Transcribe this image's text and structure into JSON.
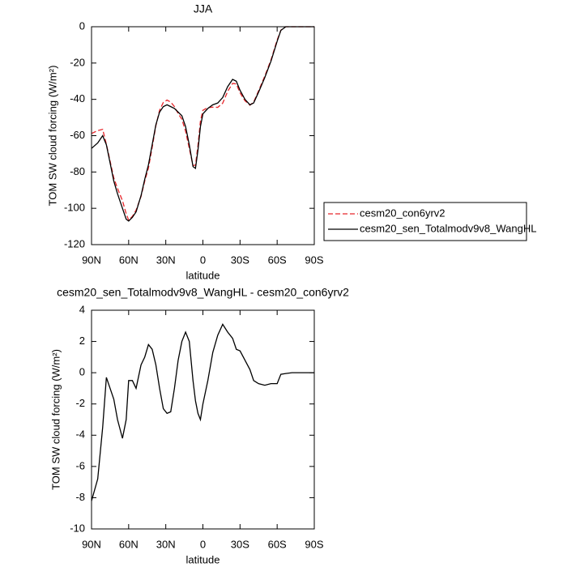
{
  "chart_data": [
    {
      "type": "line",
      "title": "JJA",
      "xlabel": "latitude",
      "ylabel": "TOM SW cloud forcing (W/m²)",
      "x": [
        90,
        85,
        81,
        78,
        75,
        72,
        69,
        65,
        62,
        60,
        57,
        54,
        50,
        47,
        44,
        41,
        38,
        35,
        32,
        29,
        26,
        23,
        20,
        17,
        14,
        11,
        8,
        6,
        4,
        2,
        0,
        -4,
        -8,
        -12,
        -16,
        -20,
        -24,
        -27,
        -30,
        -34,
        -38,
        -41,
        -45,
        -50,
        -55,
        -60,
        -63,
        -67,
        -72,
        -80,
        -90
      ],
      "series": [
        {
          "name": "cesm20_con6yrv2",
          "color": "#e8262b",
          "dashed": true,
          "values": [
            -58.8,
            -57.2,
            -56.5,
            -64.7,
            -74,
            -83.3,
            -89,
            -95.8,
            -103,
            -106.5,
            -104.5,
            -101,
            -93.5,
            -85,
            -77.8,
            -66.5,
            -54.5,
            -46,
            -41.7,
            -40.4,
            -41.5,
            -44,
            -47.8,
            -51,
            -57.6,
            -67,
            -76.5,
            -76.2,
            -65.4,
            -52,
            -46,
            -44.5,
            -44.3,
            -44.4,
            -42.1,
            -35.6,
            -31.2,
            -31.5,
            -36.4,
            -40.8,
            -43.2,
            -41.5,
            -35.3,
            -27.2,
            -18.3,
            -7.3,
            -1.9,
            0,
            0,
            0,
            0
          ]
        },
        {
          "name": "cesm20_sen_Totalmodv9v8_WangHL",
          "color": "#000000",
          "dashed": false,
          "values": [
            -67,
            -64,
            -60,
            -65,
            -75,
            -85,
            -92,
            -100,
            -106,
            -107,
            -105,
            -102,
            -93,
            -84,
            -76,
            -65,
            -54,
            -47,
            -44,
            -43,
            -44,
            -45,
            -47,
            -49,
            -55,
            -65,
            -77,
            -78,
            -68,
            -55,
            -48,
            -45,
            -43,
            -42,
            -39,
            -33,
            -29,
            -30,
            -35,
            -40,
            -43,
            -42,
            -36,
            -28,
            -19,
            -8,
            -2,
            0,
            0,
            0,
            0
          ]
        }
      ],
      "xlim": [
        90,
        -90
      ],
      "xticks": [
        {
          "value": 90,
          "label": "90N"
        },
        {
          "value": 60,
          "label": "60N"
        },
        {
          "value": 30,
          "label": "30N"
        },
        0,
        {
          "value": -30,
          "label": "30S"
        },
        {
          "value": -60,
          "label": "60S"
        },
        {
          "value": -90,
          "label": "90S"
        }
      ],
      "ylim": [
        -120,
        0
      ],
      "yticks": [
        -120,
        -100,
        -80,
        -60,
        -40,
        -20,
        0
      ],
      "legend": "right"
    },
    {
      "type": "line",
      "title": "cesm20_sen_Totalmodv9v8_WangHL - cesm20_con6yrv2",
      "xlabel": "latitude",
      "ylabel": "TOM SW cloud forcing (W/m²)",
      "x": [
        90,
        85,
        81,
        78,
        75,
        72,
        69,
        65,
        62,
        60,
        57,
        54,
        50,
        47,
        44,
        41,
        38,
        35,
        32,
        29,
        26,
        23,
        20,
        17,
        14,
        11,
        8,
        6,
        4,
        2,
        0,
        -4,
        -8,
        -12,
        -16,
        -20,
        -24,
        -27,
        -30,
        -34,
        -38,
        -41,
        -45,
        -50,
        -55,
        -60,
        -63,
        -67,
        -72,
        -80,
        -90
      ],
      "color": "#000000",
      "values": [
        -8.2,
        -6.8,
        -3.5,
        -0.3,
        -1.0,
        -1.7,
        -3.0,
        -4.2,
        -3.0,
        -0.5,
        -0.5,
        -1.0,
        0.5,
        1.0,
        1.8,
        1.5,
        0.5,
        -1.0,
        -2.3,
        -2.6,
        -2.5,
        -1.0,
        0.8,
        2.0,
        2.6,
        2.0,
        -0.5,
        -1.8,
        -2.6,
        -3.0,
        -2.0,
        -0.5,
        1.3,
        2.4,
        3.1,
        2.6,
        2.2,
        1.5,
        1.4,
        0.8,
        0.2,
        -0.5,
        -0.7,
        -0.8,
        -0.7,
        -0.7,
        -0.1,
        -0.05,
        0,
        0,
        0
      ],
      "xlim": [
        90,
        -90
      ],
      "xticks": [
        {
          "value": 90,
          "label": "90N"
        },
        {
          "value": 60,
          "label": "60N"
        },
        {
          "value": 30,
          "label": "30N"
        },
        0,
        {
          "value": -30,
          "label": "30S"
        },
        {
          "value": -60,
          "label": "60S"
        },
        {
          "value": -90,
          "label": "90S"
        }
      ],
      "ylim": [
        -10,
        4
      ],
      "yticks": [
        -10,
        -8,
        -6,
        -4,
        -2,
        0,
        2,
        4
      ]
    }
  ]
}
